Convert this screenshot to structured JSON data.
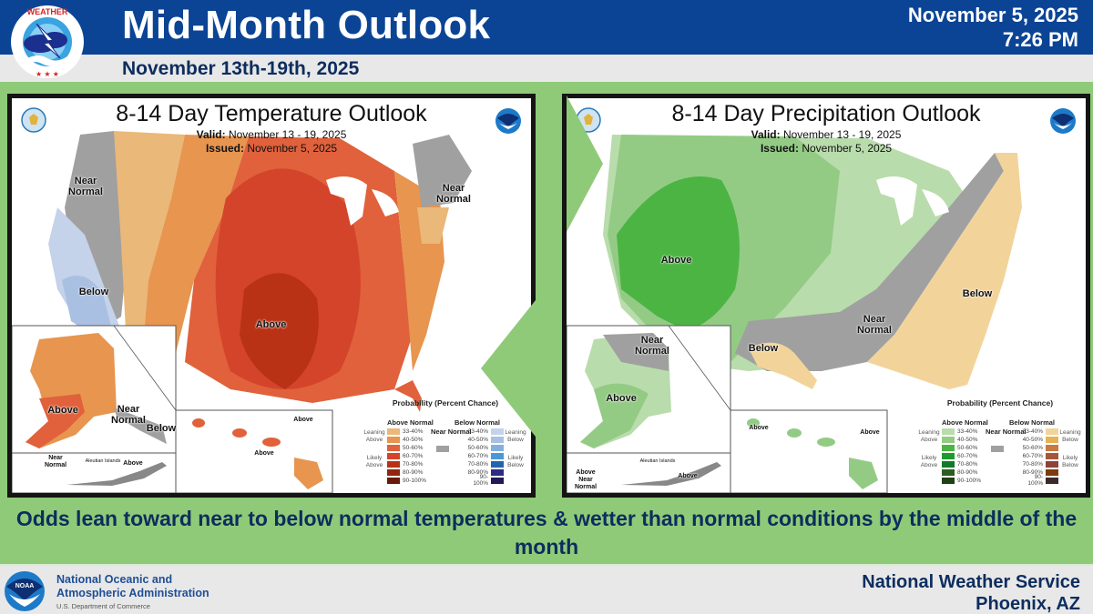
{
  "header": {
    "title": "Mid-Month Outlook",
    "subtitle": "November 13th-19th, 2025",
    "date": "November 5, 2025",
    "time": "7:26 PM",
    "logo": "nws-logo",
    "logo_text": "NATIONAL WEATHER SERVICE"
  },
  "panels": [
    {
      "title": "8-14 Day Temperature Outlook",
      "valid_label": "Valid:",
      "valid_value": "November 13 - 19, 2025",
      "issued_label": "Issued:",
      "issued_value": "November 5, 2025",
      "labels": {
        "nw": "Near Normal",
        "ne": "Near Normal",
        "ca": "Below",
        "central": "Above",
        "ak_main": "Above",
        "ak_se_near": "Near Normal",
        "ak_se_below": "Below",
        "aleut_near": "Near Normal",
        "aleut_title": "Aleutian Islands",
        "aleut_above": "Above",
        "hi_top": "Above",
        "hi_bottom": "Above"
      },
      "legend": {
        "title": "Probability (Percent Chance)",
        "above_header": "Above Normal",
        "below_header": "Below Normal",
        "near_label": "Near Normal",
        "leaning_above": "Leaning Above",
        "likely_above": "Likely Above",
        "leaning_below": "Leaning Below",
        "likely_below": "Likely Below",
        "ranges": [
          "33-40%",
          "40-50%",
          "50-60%",
          "60-70%",
          "70-80%",
          "80-90%",
          "90-100%"
        ],
        "above_colors": [
          "#eab878",
          "#e7954f",
          "#e0613b",
          "#d3442a",
          "#b93216",
          "#902512",
          "#6a1a0b"
        ],
        "below_colors": [
          "#c4d2ea",
          "#a9c0e2",
          "#84b0de",
          "#4d97d6",
          "#2365ac",
          "#2c2a83",
          "#1f1954"
        ],
        "near_color": "#a0a0a0"
      }
    },
    {
      "title": "8-14 Day Precipitation Outlook",
      "valid_label": "Valid:",
      "valid_value": "November 13 - 19, 2025",
      "issued_label": "Issued:",
      "issued_value": "November 5, 2025",
      "labels": {
        "west": "Above",
        "southeast": "Below",
        "tx": "Below",
        "near_south": "Near Normal",
        "ak_near": "Near Normal",
        "ak_above": "Above",
        "aleut_title": "Aleutian Islands",
        "aleut_above": "Above",
        "aleut_near": "Above Near Normal",
        "hi_left": "Above",
        "hi_right": "Above"
      },
      "legend": {
        "title": "Probability (Percent Chance)",
        "above_header": "Above Normal",
        "below_header": "Below Normal",
        "near_label": "Near Normal",
        "leaning_above": "Leaning Above",
        "likely_above": "Likely Above",
        "leaning_below": "Leaning Below",
        "likely_below": "Likely Below",
        "ranges": [
          "33-40%",
          "40-50%",
          "50-60%",
          "60-70%",
          "70-80%",
          "80-90%",
          "90-100%"
        ],
        "above_colors": [
          "#b9dcac",
          "#93cb85",
          "#4cb443",
          "#1d9a2d",
          "#12792a",
          "#2a5d1f",
          "#1f3f14"
        ],
        "below_colors": [
          "#f2d49a",
          "#e7b256",
          "#c97a3e",
          "#a4573a",
          "#8f4336",
          "#7d3b0e",
          "#3b2a2a"
        ],
        "near_color": "#a0a0a0"
      }
    }
  ],
  "caption": "Odds lean toward near to below normal temperatures & wetter than normal conditions by the middle of the month",
  "footer": {
    "org_line1": "National Oceanic and",
    "org_line2": "Atmospheric Administration",
    "dept": "U.S. Department of Commerce",
    "office_line1": "National Weather Service",
    "office_line2": "Phoenix, AZ",
    "noaa_logo_text": "NOAA"
  },
  "colors": {
    "header_blue": "#0b4495",
    "band_green": "#8fca78",
    "text_navy": "#0d2d5e"
  }
}
